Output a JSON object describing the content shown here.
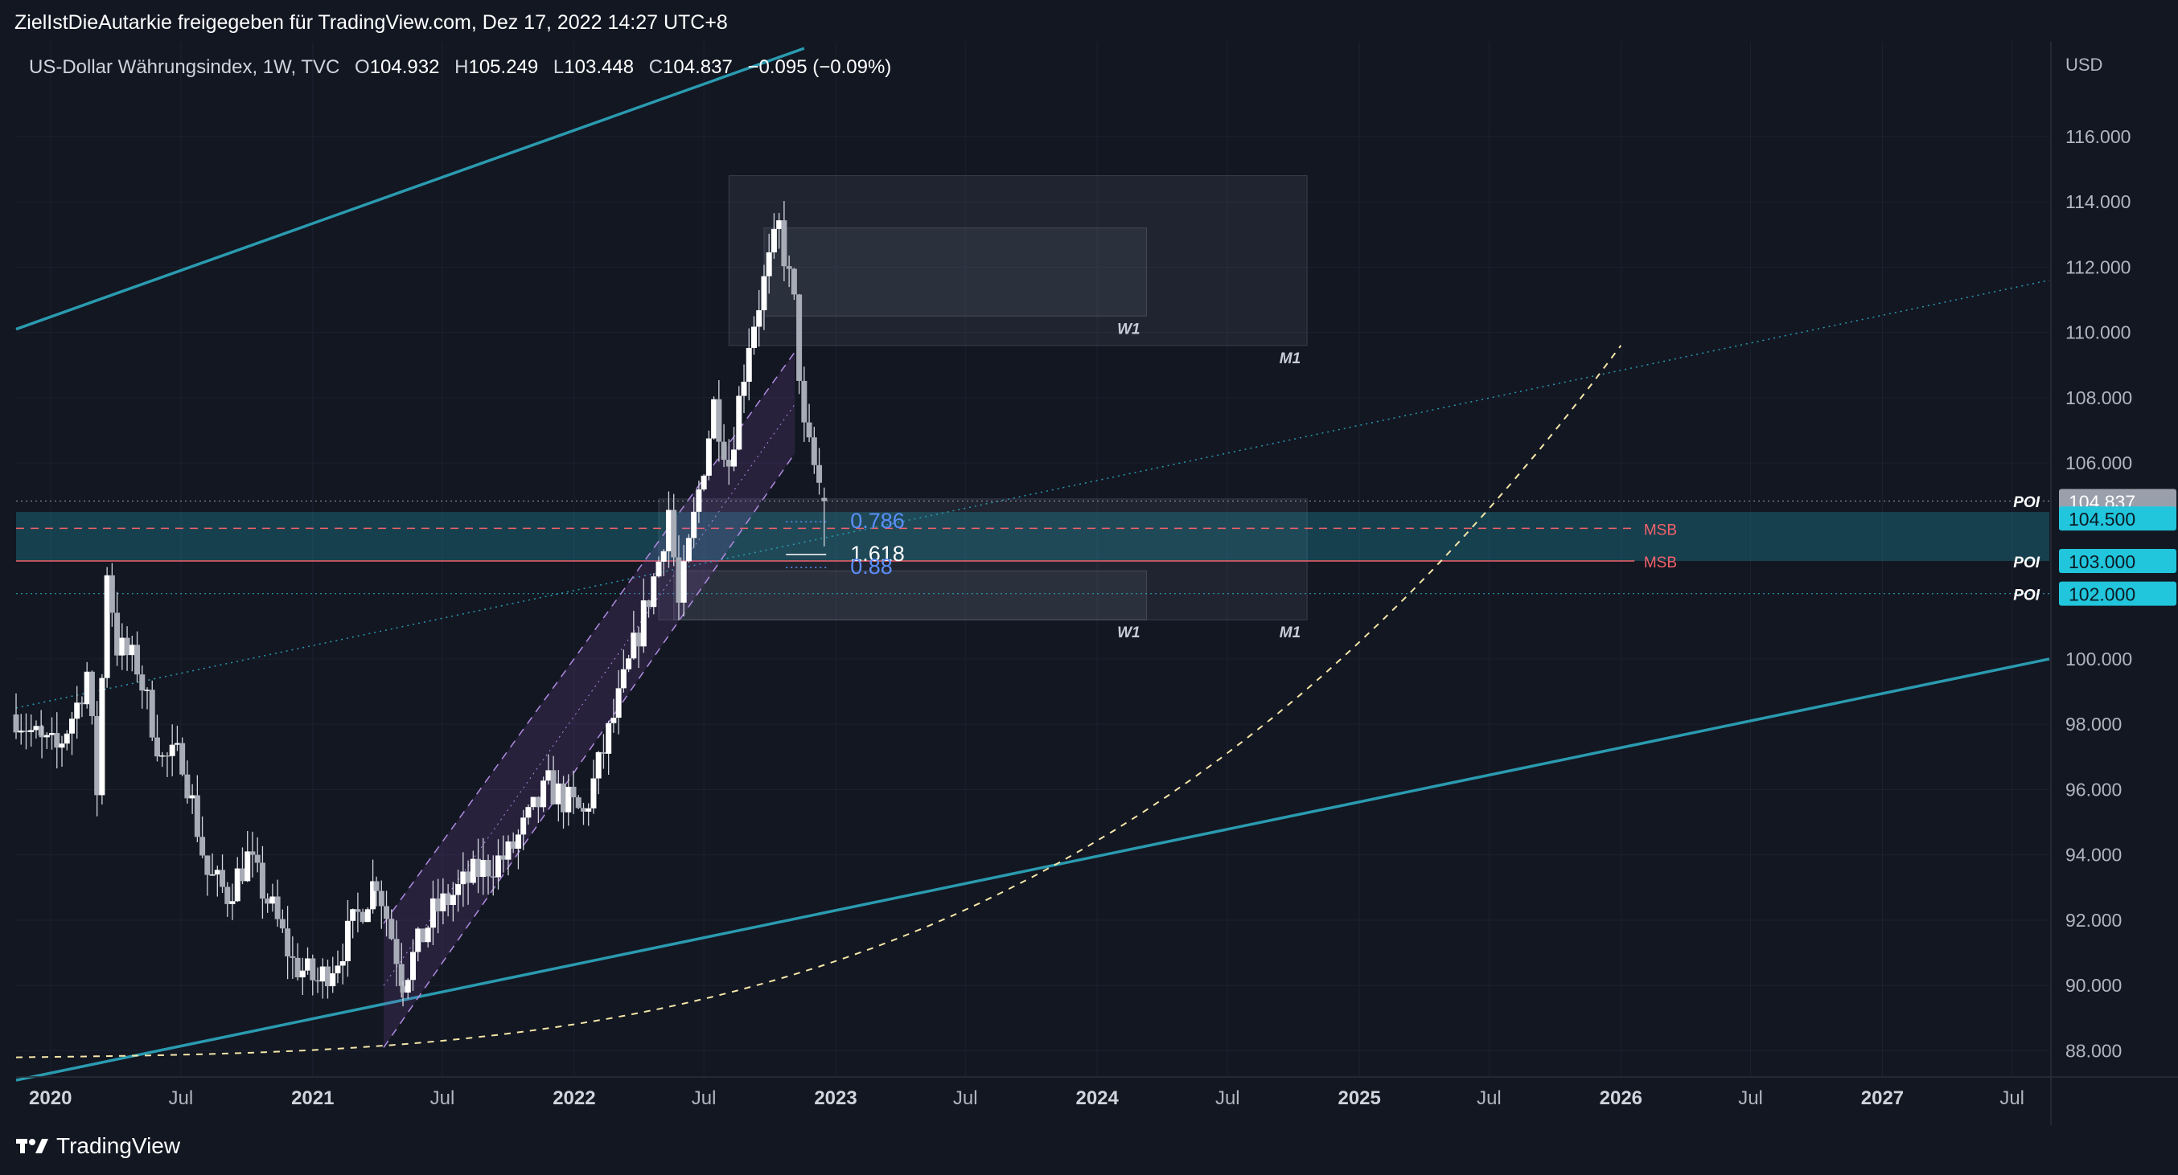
{
  "header": {
    "publish_line": "ZielIstDieAutarkie freigegeben für TradingView.com, Dez 17, 2022 14:27 UTC+8"
  },
  "legend": {
    "symbol": "US-Dollar Währungsindex, 1W, TVC",
    "open_label": "O",
    "open": "104.932",
    "high_label": "H",
    "high": "105.249",
    "low_label": "L",
    "low": "103.448",
    "close_label": "C",
    "close": "104.837",
    "change": "−0.095 (−0.09%)"
  },
  "brand": {
    "name": "TradingView"
  },
  "colors": {
    "background": "#131722",
    "channel_line": "#2a9bb0",
    "poi_band": "#1e5c6a",
    "poi_label_bg": "#21c5dc",
    "msb_red": "#f2616a",
    "fib_blue": "#5b8ff9",
    "curve_yellow": "#f5e6a8",
    "purple_channel": "#b08be0"
  },
  "chart_data": {
    "type": "candlestick",
    "title": "",
    "y_axis_unit": "USD",
    "ylim": [
      87.2,
      118.9
    ],
    "x_axis_range": [
      "2019-11-14",
      "2027-08-22"
    ],
    "x_ticks": [
      {
        "label": "2020",
        "date": "2020-01-01",
        "bold": true
      },
      {
        "label": "Jul",
        "date": "2020-07-01",
        "bold": false
      },
      {
        "label": "2021",
        "date": "2021-01-01",
        "bold": true
      },
      {
        "label": "Jul",
        "date": "2021-07-01",
        "bold": false
      },
      {
        "label": "2022",
        "date": "2022-01-01",
        "bold": true
      },
      {
        "label": "Jul",
        "date": "2022-07-01",
        "bold": false
      },
      {
        "label": "2023",
        "date": "2023-01-01",
        "bold": true
      },
      {
        "label": "Jul",
        "date": "2023-07-01",
        "bold": false
      },
      {
        "label": "2024",
        "date": "2024-01-01",
        "bold": true
      },
      {
        "label": "Jul",
        "date": "2024-07-01",
        "bold": false
      },
      {
        "label": "2025",
        "date": "2025-01-01",
        "bold": true
      },
      {
        "label": "Jul",
        "date": "2025-07-01",
        "bold": false
      },
      {
        "label": "2026",
        "date": "2026-01-01",
        "bold": true
      },
      {
        "label": "Jul",
        "date": "2026-07-01",
        "bold": false
      },
      {
        "label": "2027",
        "date": "2027-01-01",
        "bold": true
      },
      {
        "label": "Jul",
        "date": "2027-07-01",
        "bold": false
      }
    ],
    "y_ticks": [
      "116.000",
      "114.000",
      "112.000",
      "110.000",
      "108.000",
      "106.000",
      "100.000",
      "98.000",
      "96.000",
      "94.000",
      "92.000",
      "90.000",
      "88.000"
    ],
    "price_path": [
      [
        "2019-11-14",
        98.3
      ],
      [
        "2019-12-20",
        97.4
      ],
      [
        "2020-01-10",
        97.2
      ],
      [
        "2020-02-07",
        98.6
      ],
      [
        "2020-02-21",
        99.6
      ],
      [
        "2020-03-06",
        96.0
      ],
      [
        "2020-03-20",
        102.8
      ],
      [
        "2020-04-03",
        100.4
      ],
      [
        "2020-05-01",
        99.8
      ],
      [
        "2020-06-05",
        96.9
      ],
      [
        "2020-07-03",
        97.0
      ],
      [
        "2020-08-07",
        93.4
      ],
      [
        "2020-09-04",
        92.8
      ],
      [
        "2020-10-02",
        93.9
      ],
      [
        "2020-11-06",
        92.3
      ],
      [
        "2020-12-04",
        90.7
      ],
      [
        "2021-01-08",
        90.1
      ],
      [
        "2021-02-05",
        90.9
      ],
      [
        "2021-03-31",
        93.3
      ],
      [
        "2021-05-07",
        90.2
      ],
      [
        "2021-06-18",
        92.2
      ],
      [
        "2021-08-20",
        93.5
      ],
      [
        "2021-10-01",
        94.0
      ],
      [
        "2021-11-26",
        96.1
      ],
      [
        "2022-01-14",
        95.2
      ],
      [
        "2022-03-04",
        98.7
      ],
      [
        "2022-04-29",
        103.0
      ],
      [
        "2022-05-13",
        104.6
      ],
      [
        "2022-05-27",
        101.6
      ],
      [
        "2022-07-15",
        107.8
      ],
      [
        "2022-08-05",
        106.0
      ],
      [
        "2022-09-02",
        109.8
      ],
      [
        "2022-09-30",
        112.1
      ],
      [
        "2022-10-14",
        113.2
      ],
      [
        "2022-11-04",
        110.8
      ],
      [
        "2022-11-18",
        106.9
      ],
      [
        "2022-12-16",
        104.837
      ]
    ],
    "ohlc_last": {
      "open": 104.932,
      "high": 105.249,
      "low": 103.448,
      "close": 104.837
    },
    "current_price": 104.837,
    "poi_levels": [
      104.5,
      103.0,
      102.0
    ],
    "poi_label": "POI",
    "msb_levels": [
      104.0,
      103.0
    ],
    "msb_label": "MSB",
    "fib_levels": [
      {
        "label": "0.786",
        "value": 104.3
      },
      {
        "label": "1.618",
        "value": 103.3
      },
      {
        "label": "0.88",
        "value": 102.9
      }
    ],
    "zones": [
      {
        "label": "M1",
        "y_top": 114.8,
        "y_bottom": 109.6
      },
      {
        "label": "W1",
        "y_top": 113.2,
        "y_bottom": 110.5
      },
      {
        "label": "M1",
        "y_top": 104.9,
        "y_bottom": 101.2
      },
      {
        "label": "W1",
        "y_top": 102.7,
        "y_bottom": 101.2
      }
    ],
    "upper_channel_line": [
      [
        "2019-11-14",
        110.1
      ],
      [
        "2022-11-18",
        118.7
      ]
    ],
    "lower_channel_line": [
      [
        "2019-11-14",
        87.1
      ],
      [
        "2027-08-22",
        100.0
      ]
    ],
    "legend": "none",
    "grid": true
  }
}
